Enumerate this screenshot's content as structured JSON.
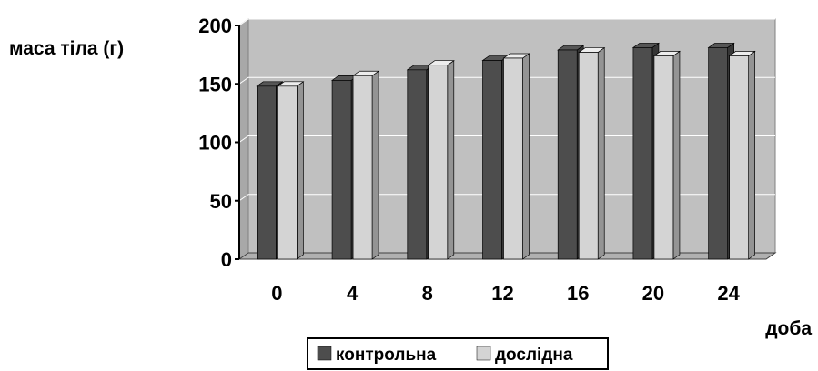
{
  "chart_data": {
    "type": "bar",
    "ylabel": "маса тіла (г)",
    "xlabel": "доба",
    "categories": [
      "0",
      "4",
      "8",
      "12",
      "16",
      "20",
      "24"
    ],
    "series": [
      {
        "name": "контрольна",
        "values": [
          148,
          153,
          162,
          170,
          179,
          181,
          181
        ],
        "color": "#4d4d4d"
      },
      {
        "name": "дослідна",
        "values": [
          148,
          157,
          166,
          172,
          177,
          174,
          174
        ],
        "color": "#d4d4d4"
      }
    ],
    "ylim": [
      0,
      200
    ],
    "yticks": [
      0,
      50,
      100,
      150,
      200
    ],
    "grid": true,
    "style": "3d",
    "plot_background": "#c0c0c0",
    "legend_position": "bottom"
  }
}
